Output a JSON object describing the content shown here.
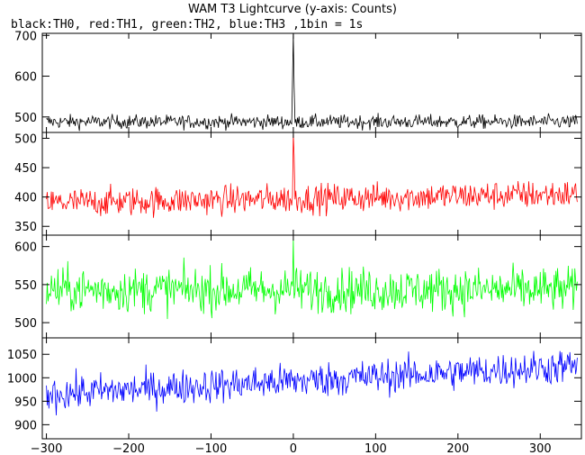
{
  "chart_data": {
    "type": "line",
    "title": "WAM T3 Lightcurve (y-axis: Counts)",
    "subtitle": "black:TH0, red:TH1, green:TH2, blue:TH3 ,1bin = 1s",
    "x": {
      "start": -300,
      "end": 345,
      "step": 1,
      "range": [
        -305,
        350
      ],
      "ticks": [
        -300,
        -200,
        -100,
        0,
        100,
        200,
        300
      ]
    },
    "series": [
      {
        "color": "#000000",
        "ylim": [
          462,
          705
        ],
        "ticks": [
          500,
          600,
          700
        ],
        "baseline": 488,
        "amplitude": 22,
        "trend": 0,
        "peak": {
          "x": 0,
          "y": 705
        },
        "sub_peaks": [
          {
            "x": -1,
            "y": 590
          },
          {
            "x": 1,
            "y": 575
          }
        ]
      },
      {
        "color": "#ff0000",
        "ylim": [
          335,
          510
        ],
        "ticks": [
          350,
          400,
          450,
          500
        ],
        "baseline": 390,
        "amplitude": 32,
        "trend": 15,
        "peak": {
          "x": 0,
          "y": 508
        },
        "sub_peaks": [
          {
            "x": 1,
            "y": 470
          }
        ]
      },
      {
        "color": "#00ff00",
        "ylim": [
          480,
          615
        ],
        "ticks": [
          500,
          550,
          600
        ],
        "baseline": 543,
        "amplitude": 38,
        "trend": 0,
        "peak": {
          "x": 0,
          "y": 610
        },
        "sub_peaks": []
      },
      {
        "color": "#0000ff",
        "ylim": [
          870,
          1085
        ],
        "ticks": [
          900,
          950,
          1000,
          1050
        ],
        "baseline": 965,
        "amplitude": 48,
        "trend": 60,
        "peak": null,
        "sub_peaks": []
      }
    ]
  }
}
